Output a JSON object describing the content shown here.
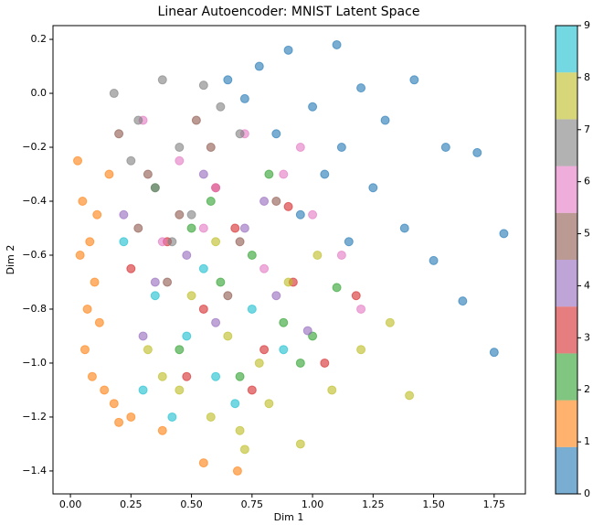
{
  "chart_data": {
    "type": "scatter",
    "title": "Linear Autoencoder: MNIST Latent Space",
    "xlabel": "Dim 1",
    "ylabel": "Dim 2",
    "xlim": [
      -0.072,
      1.879
    ],
    "ylim": [
      -1.485,
      0.251
    ],
    "xticks": [
      {
        "value": 0,
        "label": "0.00"
      },
      {
        "value": 0.25,
        "label": "0.25"
      },
      {
        "value": 0.5,
        "label": "0.50"
      },
      {
        "value": 0.75,
        "label": "0.75"
      },
      {
        "value": 1,
        "label": "1.00"
      },
      {
        "value": 1.25,
        "label": "1.25"
      },
      {
        "value": 1.5,
        "label": "1.50"
      },
      {
        "value": 1.75,
        "label": "1.75"
      }
    ],
    "yticks": [
      {
        "value": 0.2,
        "label": "0.2"
      },
      {
        "value": 0,
        "label": "0.0"
      },
      {
        "value": -0.2,
        "label": "−0.2"
      },
      {
        "value": -0.4,
        "label": "−0.4"
      },
      {
        "value": -0.6,
        "label": "−0.6"
      },
      {
        "value": -0.8,
        "label": "−0.8"
      },
      {
        "value": -1,
        "label": "−1.0"
      },
      {
        "value": -1.2,
        "label": "−1.2"
      },
      {
        "value": -1.4,
        "label": "−1.4"
      }
    ],
    "colorbar": {
      "lim": [
        0,
        9
      ],
      "ticks": [
        0,
        1,
        2,
        3,
        4,
        5,
        6,
        7,
        8,
        9
      ]
    },
    "series": [
      {
        "color": "#1f77b4",
        "x": [
          0.65,
          0.78,
          0.9,
          1.0,
          1.1,
          1.2,
          1.3,
          1.42,
          1.55,
          1.68,
          1.79,
          0.85,
          1.05,
          1.25,
          1.15,
          0.95,
          1.38,
          1.5,
          1.62,
          1.75,
          0.72,
          1.12
        ],
        "values": [
          0.05,
          0.1,
          0.16,
          -0.05,
          0.18,
          0.02,
          -0.1,
          0.05,
          -0.2,
          -0.22,
          -0.52,
          -0.15,
          -0.3,
          -0.35,
          -0.55,
          -0.45,
          -0.5,
          -0.62,
          -0.77,
          -0.96,
          -0.02,
          -0.2
        ]
      },
      {
        "color": "#ff7f0e",
        "x": [
          0.03,
          0.05,
          0.08,
          0.1,
          0.12,
          0.04,
          0.06,
          0.09,
          0.14,
          0.18,
          0.2,
          0.16,
          0.11,
          0.07,
          0.25,
          0.38,
          0.55,
          0.69
        ],
        "values": [
          -0.25,
          -0.4,
          -0.55,
          -0.7,
          -0.85,
          -0.6,
          -0.95,
          -1.05,
          -1.1,
          -1.15,
          -1.22,
          -0.3,
          -0.45,
          -0.8,
          -1.2,
          -1.25,
          -1.37,
          -1.4
        ]
      },
      {
        "color": "#2ca02c",
        "x": [
          0.35,
          0.5,
          0.62,
          0.75,
          0.88,
          1.0,
          0.45,
          0.7,
          0.95,
          1.1,
          0.58,
          0.82
        ],
        "values": [
          -0.35,
          -0.5,
          -0.7,
          -0.6,
          -0.85,
          -0.9,
          -0.95,
          -1.05,
          -1.0,
          -0.72,
          -0.4,
          -0.3
        ]
      },
      {
        "color": "#d62728",
        "x": [
          0.25,
          0.4,
          0.55,
          0.68,
          0.8,
          0.92,
          1.05,
          1.18,
          0.48,
          0.75,
          0.6,
          0.9
        ],
        "values": [
          -0.65,
          -0.55,
          -0.8,
          -0.5,
          -0.95,
          -0.7,
          -1.0,
          -0.75,
          -1.05,
          -1.1,
          -0.35,
          -0.42
        ]
      },
      {
        "color": "#9467bd",
        "x": [
          0.22,
          0.35,
          0.48,
          0.6,
          0.72,
          0.85,
          0.98,
          0.3,
          0.55,
          0.8
        ],
        "values": [
          -0.45,
          -0.7,
          -0.6,
          -0.85,
          -0.5,
          -0.75,
          -0.88,
          -0.9,
          -0.3,
          -0.4
        ]
      },
      {
        "color": "#8c564b",
        "x": [
          0.2,
          0.32,
          0.45,
          0.58,
          0.7,
          0.85,
          0.4,
          0.65,
          0.28,
          0.52
        ],
        "values": [
          -0.15,
          -0.3,
          -0.45,
          -0.2,
          -0.55,
          -0.4,
          -0.7,
          -0.75,
          -0.5,
          -0.1
        ]
      },
      {
        "color": "#e377c2",
        "x": [
          0.3,
          0.45,
          0.6,
          0.72,
          0.88,
          1.0,
          1.12,
          0.55,
          0.8,
          0.95,
          0.38,
          1.2
        ],
        "values": [
          -0.1,
          -0.25,
          -0.35,
          -0.15,
          -0.3,
          -0.45,
          -0.6,
          -0.5,
          -0.65,
          -0.2,
          -0.55,
          -0.8
        ]
      },
      {
        "color": "#7f7f7f",
        "x": [
          0.18,
          0.28,
          0.38,
          0.45,
          0.55,
          0.62,
          0.35,
          0.5,
          0.25,
          0.7,
          0.42
        ],
        "values": [
          0.0,
          -0.1,
          0.05,
          -0.2,
          0.03,
          -0.05,
          -0.35,
          -0.45,
          -0.25,
          -0.15,
          -0.55
        ]
      },
      {
        "color": "#bcbd22",
        "x": [
          0.32,
          0.45,
          0.58,
          0.7,
          0.82,
          0.95,
          1.08,
          1.2,
          1.32,
          0.5,
          0.65,
          0.78,
          0.9,
          1.02,
          1.4,
          0.38,
          0.72,
          0.6
        ],
        "values": [
          -0.95,
          -1.1,
          -1.2,
          -1.25,
          -1.15,
          -1.3,
          -1.1,
          -0.95,
          -0.85,
          -0.75,
          -0.9,
          -1.0,
          -0.7,
          -0.6,
          -1.12,
          -1.05,
          -1.32,
          -0.55
        ]
      },
      {
        "color": "#17becf",
        "x": [
          0.22,
          0.35,
          0.48,
          0.6,
          0.75,
          0.88,
          0.3,
          0.55,
          0.42,
          0.68
        ],
        "values": [
          -0.55,
          -0.75,
          -0.9,
          -1.05,
          -0.8,
          -0.95,
          -1.1,
          -0.65,
          -1.2,
          -1.15
        ]
      }
    ]
  }
}
